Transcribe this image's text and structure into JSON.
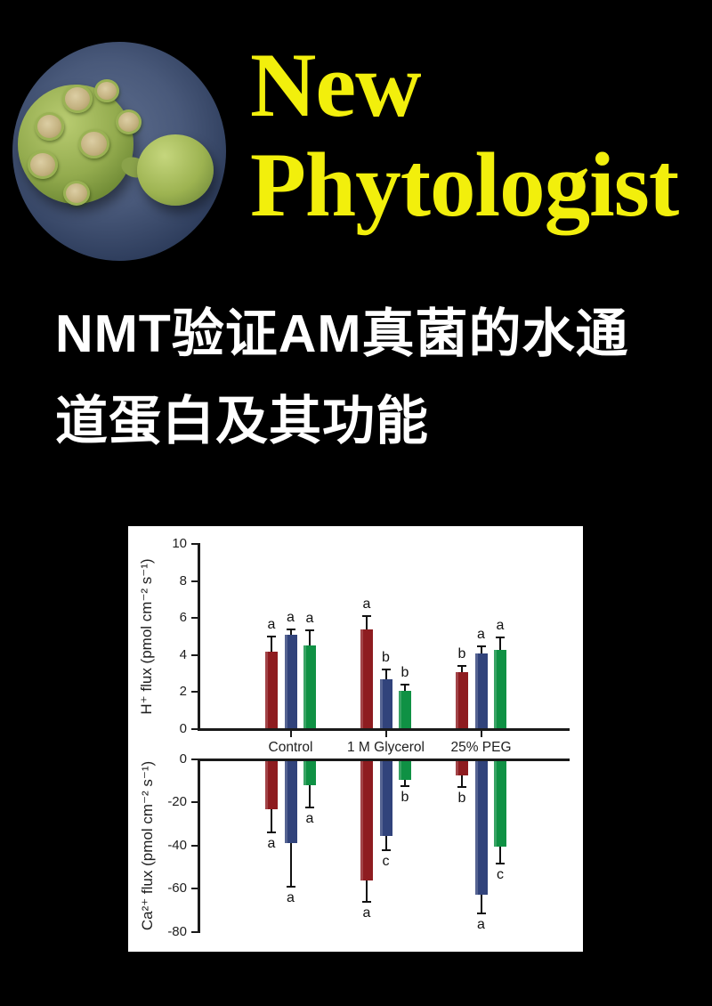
{
  "journal": {
    "line1": "New",
    "line2": "Phytologist",
    "color": "#f2ef0c"
  },
  "headline": {
    "line1": "NMT验证AM真菌的水通",
    "line2": "道蛋白及其功能"
  },
  "chart_data": {
    "type": "bar",
    "categories": [
      "Control",
      "1 M Glycerol",
      "25% PEG"
    ],
    "grid": false,
    "legend": null,
    "panels": [
      {
        "ylabel": "H⁺ flux (pmol cm⁻² s⁻¹)",
        "ylim": [
          0,
          10
        ],
        "yticks": [
          10,
          8,
          6,
          4,
          2,
          0
        ],
        "series": [
          {
            "name": "series-red",
            "color": "#8e1c20",
            "values": [
              4.2,
              5.4,
              3.1
            ],
            "errors": [
              0.8,
              0.7,
              0.3
            ],
            "letters": [
              "a",
              "a",
              "b"
            ]
          },
          {
            "name": "series-blue",
            "color": "#31437b",
            "values": [
              5.1,
              2.7,
              4.1
            ],
            "errors": [
              0.3,
              0.5,
              0.35
            ],
            "letters": [
              "a",
              "b",
              "a"
            ]
          },
          {
            "name": "series-green",
            "color": "#0f9144",
            "values": [
              4.5,
              2.05,
              4.3
            ],
            "errors": [
              0.85,
              0.35,
              0.65
            ],
            "letters": [
              "a",
              "b",
              "a"
            ]
          }
        ]
      },
      {
        "ylabel": "Ca²⁺ flux (pmol cm⁻² s⁻¹)",
        "ylim": [
          -80,
          0
        ],
        "yticks": [
          0,
          -20,
          -40,
          -60,
          -80
        ],
        "series": [
          {
            "name": "series-red",
            "color": "#8e1c20",
            "values": [
              -23,
              -56,
              -7.5
            ],
            "errors": [
              11,
              10,
              5.5
            ],
            "letters": [
              "a",
              "a",
              "b"
            ]
          },
          {
            "name": "series-blue",
            "color": "#31437b",
            "values": [
              -39,
              -35.5,
              -63
            ],
            "errors": [
              20,
              6.5,
              8.5
            ],
            "letters": [
              "a",
              "c",
              "a"
            ]
          },
          {
            "name": "series-green",
            "color": "#0f9144",
            "values": [
              -12,
              -9.5,
              -40.5
            ],
            "errors": [
              10.5,
              3,
              8
            ],
            "letters": [
              "a",
              "b",
              "c"
            ]
          }
        ]
      }
    ]
  }
}
